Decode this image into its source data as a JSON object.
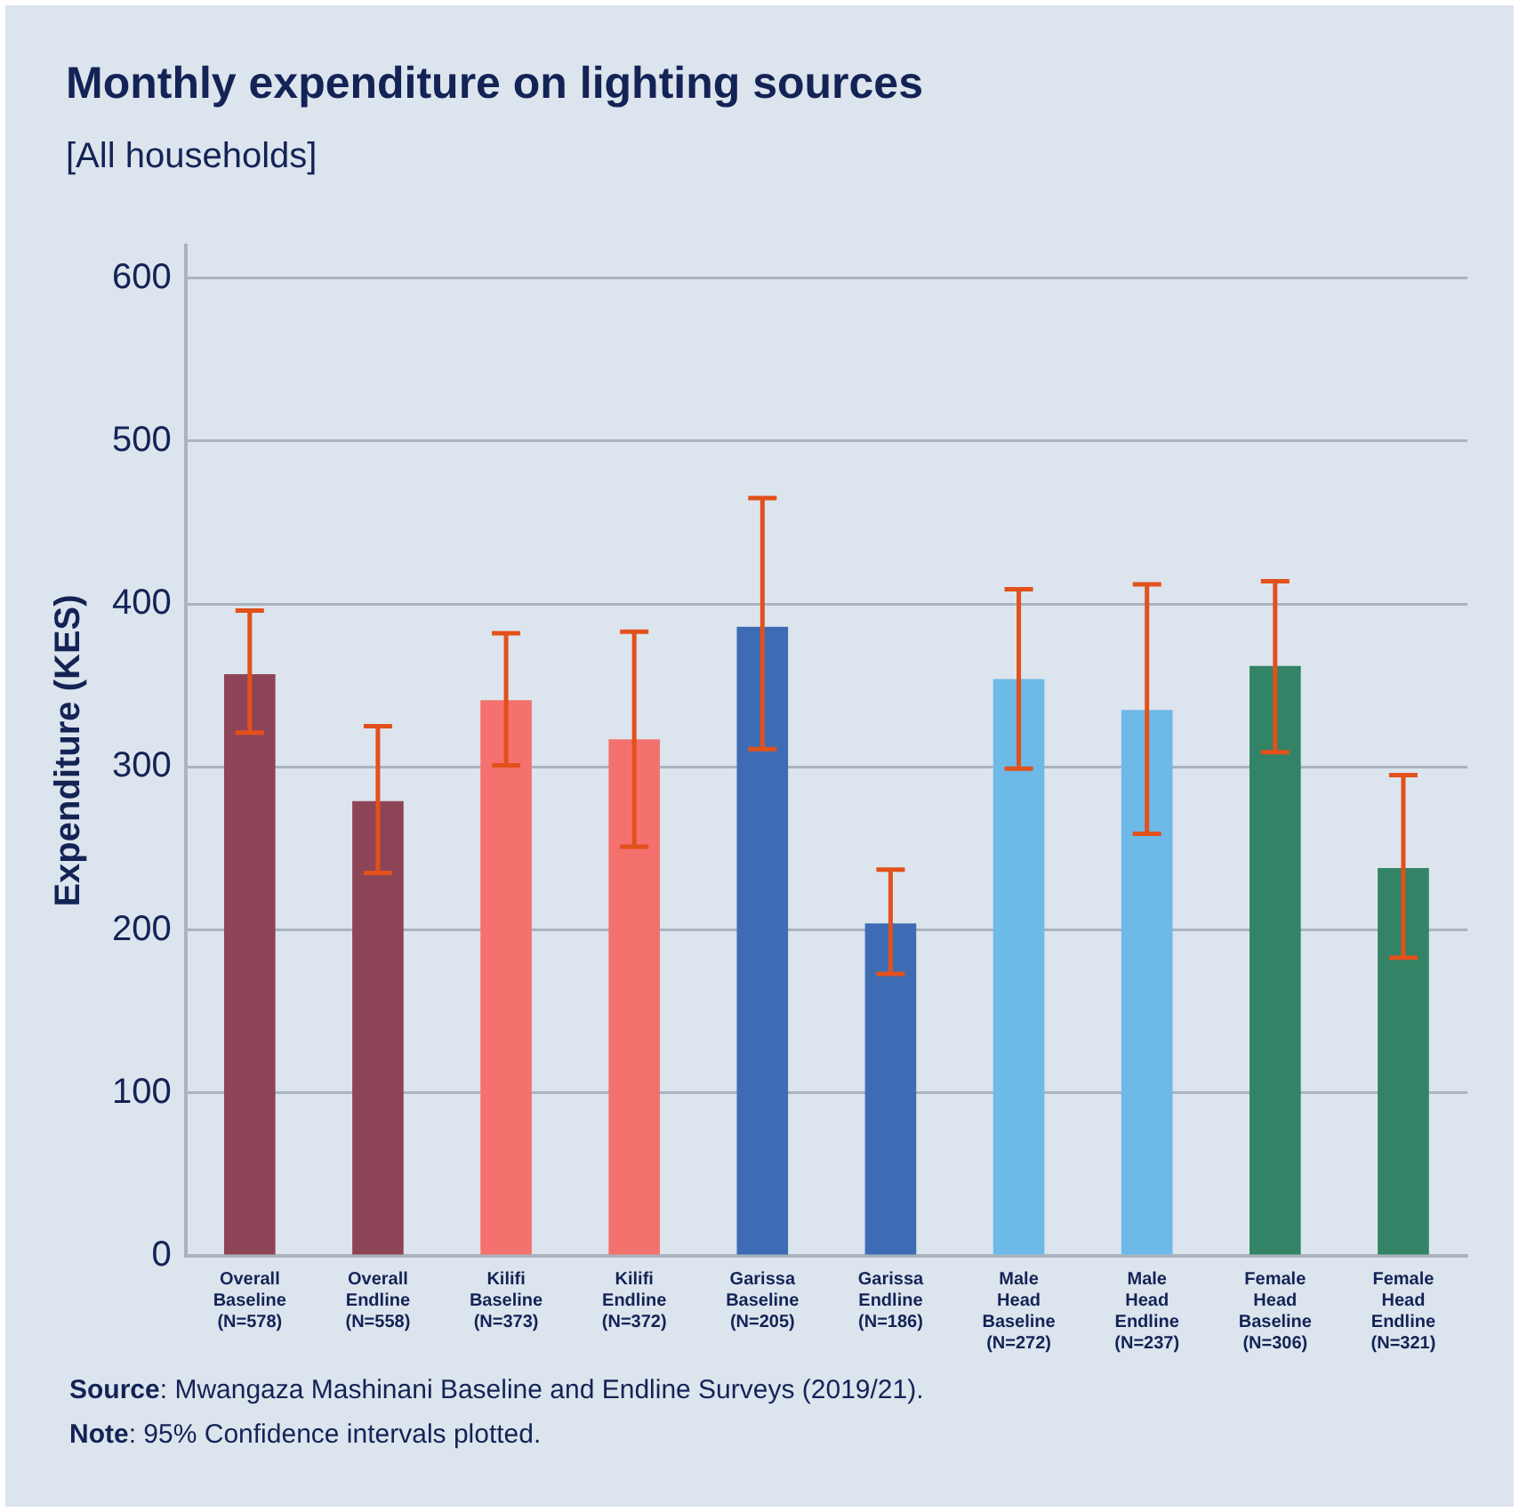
{
  "chart_data": {
    "type": "bar",
    "title": "Monthly expenditure on lighting sources",
    "subtitle": "[All households]",
    "ylabel": "Expenditure (KES)",
    "categories": [
      "Overall\nBaseline\n(N=578)",
      "Overall\nEndline\n(N=558)",
      "Kilifi\nBaseline\n(N=373)",
      "Kilifi\nEndline\n(N=372)",
      "Garissa\nBaseline\n(N=205)",
      "Garissa\nEndline\n(N=186)",
      "Male\nHead\nBaseline\n(N=272)",
      "Male\nHead\nEndline\n(N=237)",
      "Female\nHead\nBaseline\n(N=306)",
      "Female\nHead\nEndline\n(N=321)"
    ],
    "values": [
      357,
      279,
      341,
      317,
      386,
      204,
      354,
      335,
      362,
      238
    ],
    "colors": [
      "#8e4457",
      "#8e4457",
      "#f4716e",
      "#f4716e",
      "#3d6cb4",
      "#3d6cb4",
      "#6db9e8",
      "#6db9e8",
      "#338367",
      "#338367"
    ],
    "errors": [
      [
        321,
        396
      ],
      [
        235,
        325
      ],
      [
        301,
        382
      ],
      [
        251,
        383
      ],
      [
        311,
        465
      ],
      [
        173,
        237
      ],
      [
        299,
        409
      ],
      [
        259,
        412
      ],
      [
        309,
        414
      ],
      [
        183,
        295
      ]
    ],
    "ylim": [
      0,
      620
    ],
    "yticks": [
      0,
      100,
      200,
      300,
      400,
      500,
      600
    ],
    "grid": "y",
    "legend": false,
    "annotations": [
      "Source: Mwangaza Mashinani Baseline and Endline Surveys (2019/21).",
      "Note: 95% Confidence intervals plotted."
    ]
  }
}
